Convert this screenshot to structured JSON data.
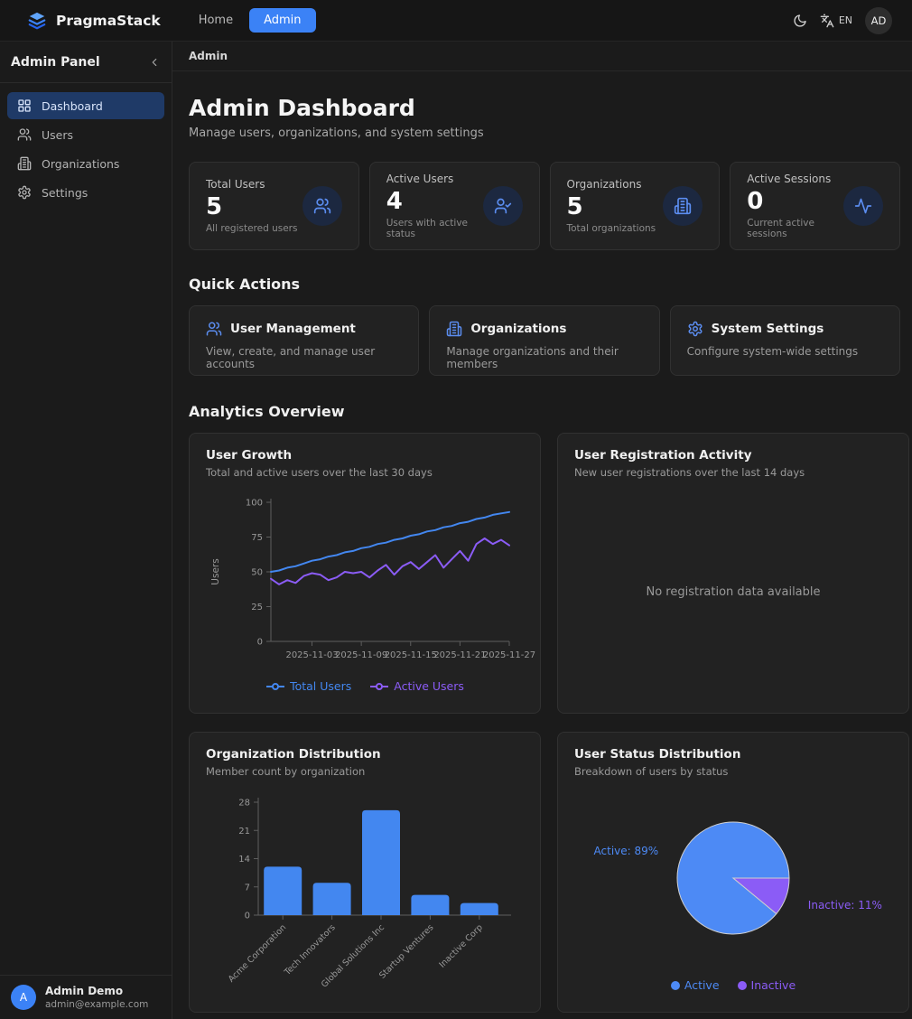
{
  "theme": {
    "accent": "#3b82f6",
    "chart_blue": "#4387f0",
    "chart_purple": "#8b5cf6"
  },
  "navbar": {
    "brand": "PragmaStack",
    "nav_items": [
      {
        "label": "Home",
        "active": false
      },
      {
        "label": "Admin",
        "active": true
      }
    ],
    "language": "EN",
    "avatar_initials": "AD"
  },
  "sidebar": {
    "title": "Admin Panel",
    "items": [
      {
        "label": "Dashboard",
        "icon": "dashboard",
        "active": true
      },
      {
        "label": "Users",
        "icon": "users",
        "active": false
      },
      {
        "label": "Organizations",
        "icon": "building",
        "active": false
      },
      {
        "label": "Settings",
        "icon": "gear",
        "active": false
      }
    ],
    "user": {
      "initial": "A",
      "name": "Admin Demo",
      "email": "admin@example.com"
    }
  },
  "breadcrumb": "Admin",
  "page": {
    "title": "Admin Dashboard",
    "subtitle": "Manage users, organizations, and system settings"
  },
  "stats": [
    {
      "label": "Total Users",
      "value": "5",
      "description": "All registered users",
      "icon": "users"
    },
    {
      "label": "Active Users",
      "value": "4",
      "description": "Users with active status",
      "icon": "user-check"
    },
    {
      "label": "Organizations",
      "value": "5",
      "description": "Total organizations",
      "icon": "building"
    },
    {
      "label": "Active Sessions",
      "value": "0",
      "description": "Current active sessions",
      "icon": "activity"
    }
  ],
  "quick_actions": {
    "heading": "Quick Actions",
    "cards": [
      {
        "title": "User Management",
        "description": "View, create, and manage user accounts",
        "icon": "users"
      },
      {
        "title": "Organizations",
        "description": "Manage organizations and their members",
        "icon": "building"
      },
      {
        "title": "System Settings",
        "description": "Configure system-wide settings",
        "icon": "gear"
      }
    ]
  },
  "analytics": {
    "heading": "Analytics Overview",
    "cards": [
      {
        "title": "User Growth",
        "subtitle": "Total and active users over the last 30 days"
      },
      {
        "title": "User Registration Activity",
        "subtitle": "New user registrations over the last 14 days",
        "empty_message": "No registration data available"
      },
      {
        "title": "Organization Distribution",
        "subtitle": "Member count by organization"
      },
      {
        "title": "User Status Distribution",
        "subtitle": "Breakdown of users by status"
      }
    ]
  },
  "chart_data": [
    {
      "id": "user-growth",
      "type": "line",
      "title": "User Growth",
      "ylabel": "Users",
      "ylim": [
        0,
        100
      ],
      "yticks": [
        0,
        25,
        50,
        75,
        100
      ],
      "xticks": [
        {
          "pos": 5,
          "label": "2025-11-03"
        },
        {
          "pos": 11,
          "label": "2025-11-09"
        },
        {
          "pos": 17,
          "label": "2025-11-15"
        },
        {
          "pos": 23,
          "label": "2025-11-21"
        },
        {
          "pos": 29,
          "label": "2025-11-27"
        }
      ],
      "legend_position": "bottom",
      "series": [
        {
          "name": "Total Users",
          "color": "#4387f0",
          "values": [
            50,
            51,
            53,
            54,
            56,
            58,
            59,
            61,
            62,
            64,
            65,
            67,
            68,
            70,
            71,
            73,
            74,
            76,
            77,
            79,
            80,
            82,
            83,
            85,
            86,
            88,
            89,
            91,
            92,
            93
          ]
        },
        {
          "name": "Active Users",
          "color": "#8b5cf6",
          "values": [
            45,
            41,
            44,
            42,
            47,
            49,
            48,
            44,
            46,
            50,
            49,
            50,
            46,
            51,
            55,
            48,
            54,
            57,
            52,
            57,
            62,
            53,
            59,
            65,
            58,
            70,
            74,
            70,
            73,
            69
          ]
        }
      ]
    },
    {
      "id": "registration-activity",
      "type": "empty",
      "title": "User Registration Activity",
      "message": "No registration data available"
    },
    {
      "id": "org-distribution",
      "type": "bar",
      "title": "Organization Distribution",
      "categories": [
        "Acme Corporation",
        "Tech Innovators",
        "Global Solutions Inc",
        "Startup Ventures",
        "Inactive Corp"
      ],
      "values": [
        12,
        8,
        26,
        5,
        3
      ],
      "bar_color": "#4387f0",
      "ylim": [
        0,
        28
      ],
      "yticks": [
        0,
        7,
        14,
        21,
        28
      ]
    },
    {
      "id": "status-distribution",
      "type": "pie",
      "title": "User Status Distribution",
      "slices": [
        {
          "label": "Active",
          "pct": 89,
          "color": "#4d8af5"
        },
        {
          "label": "Inactive",
          "pct": 11,
          "color": "#8b5cf6"
        }
      ],
      "legend_position": "bottom"
    }
  ]
}
